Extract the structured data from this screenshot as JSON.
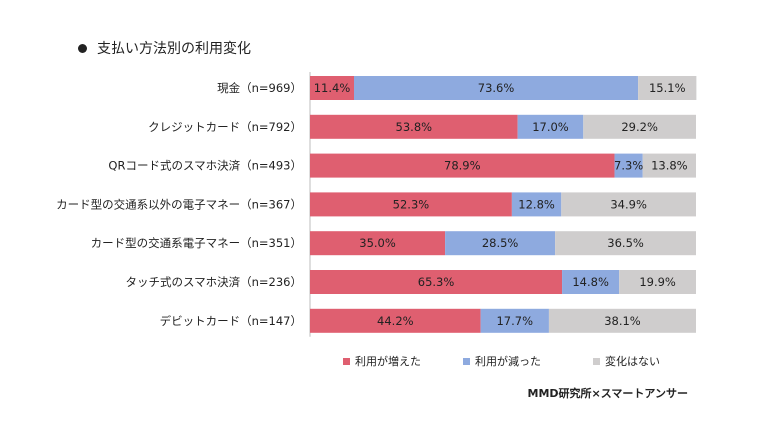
{
  "header": {
    "title": "支払い方法別の利用変化"
  },
  "source": "MMD研究所×スマートアンサー",
  "colors": {
    "increased": "#df5f70",
    "decreased": "#8eaadf",
    "unchanged": "#cfcdcd"
  },
  "chart_data": {
    "type": "bar",
    "orientation": "horizontal",
    "stacked": true,
    "percent_stacked": true,
    "title": "支払い方法別の利用変化",
    "xlim": [
      0,
      100
    ],
    "grid": false,
    "legend_position": "bottom",
    "categories": [
      "現金（n=969）",
      "クレジットカード（n=792）",
      "QRコード式のスマホ決済（n=493）",
      "カード型の交通系以外の電子マネー（n=367）",
      "カード型の交通系電子マネー（n=351）",
      "タッチ式のスマホ決済（n=236）",
      "デビットカード（n=147）"
    ],
    "series": [
      {
        "name": "利用が増えた",
        "values": [
          11.4,
          53.8,
          78.9,
          52.3,
          35.0,
          65.3,
          44.2
        ],
        "labels": [
          "11.4%",
          "53.8%",
          "78.9%",
          "52.3%",
          "35.0%",
          "65.3%",
          "44.2%"
        ]
      },
      {
        "name": "利用が減った",
        "values": [
          73.6,
          17.0,
          7.3,
          12.8,
          28.5,
          14.8,
          17.7
        ],
        "labels": [
          "73.6%",
          "17.0%",
          "7.3%",
          "12.8%",
          "28.5%",
          "14.8%",
          "17.7%"
        ]
      },
      {
        "name": "変化はない",
        "values": [
          15.1,
          29.2,
          13.8,
          34.9,
          36.5,
          19.9,
          38.1
        ],
        "labels": [
          "15.1%",
          "29.2%",
          "13.8%",
          "34.9%",
          "36.5%",
          "19.9%",
          "38.1%"
        ]
      }
    ]
  }
}
